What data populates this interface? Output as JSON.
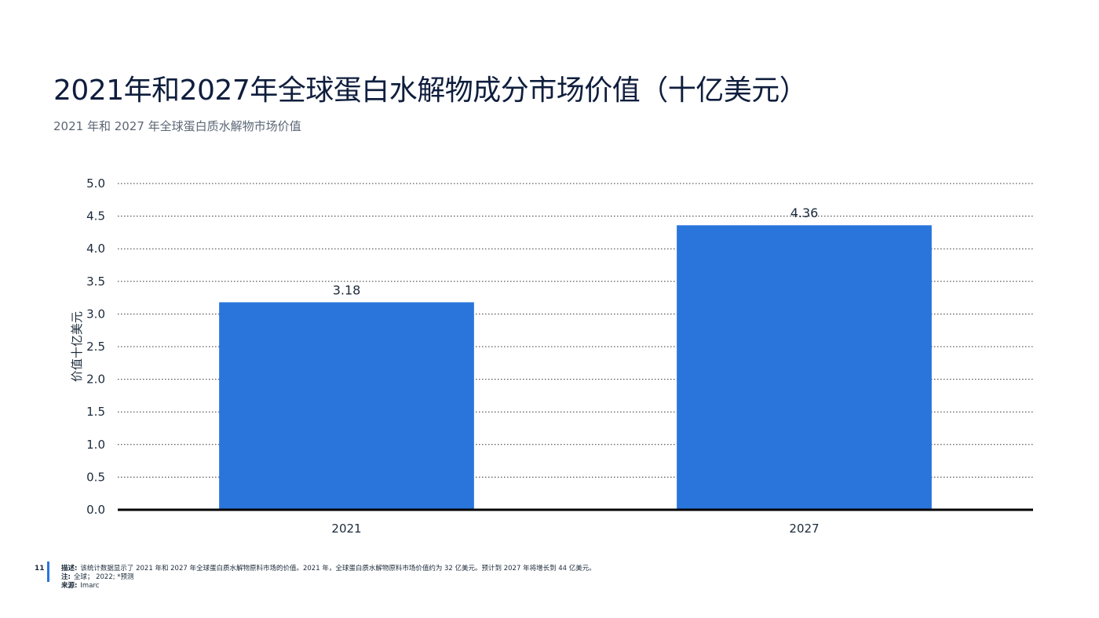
{
  "header": {
    "title": "2021年和2027年全球蛋白水解物成分市场价值（十亿美元）",
    "subtitle": "2021 年和 2027 年全球蛋白质水解物市场价值"
  },
  "chart_data": {
    "type": "bar",
    "categories": [
      "2021",
      "2027"
    ],
    "values": [
      3.18,
      4.36
    ],
    "data_labels": [
      "3.18",
      "4.36"
    ],
    "ylabel": "价值十亿美元",
    "xlabel": "",
    "ylim": [
      0,
      5.0
    ],
    "yticks": [
      "0.0",
      "0.5",
      "1.0",
      "1.5",
      "2.0",
      "2.5",
      "3.0",
      "3.5",
      "4.0",
      "4.5",
      "5.0"
    ],
    "grid": true,
    "bar_color": "#2a75dc"
  },
  "footer": {
    "page_number": "11",
    "description_label": "描述:",
    "description": "该统计数据显示了 2021 年和 2027 年全球蛋白质水解物原料市场的价值。2021 年，全球蛋白质水解物原料市场价值约为 32 亿美元。预计到 2027 年将增长到 44 亿美元。",
    "note_label": "注:",
    "note": "全球； 2022; *预测",
    "source_label": "来源:",
    "source": "Imarc",
    "accent_color": "#2a75dc"
  }
}
